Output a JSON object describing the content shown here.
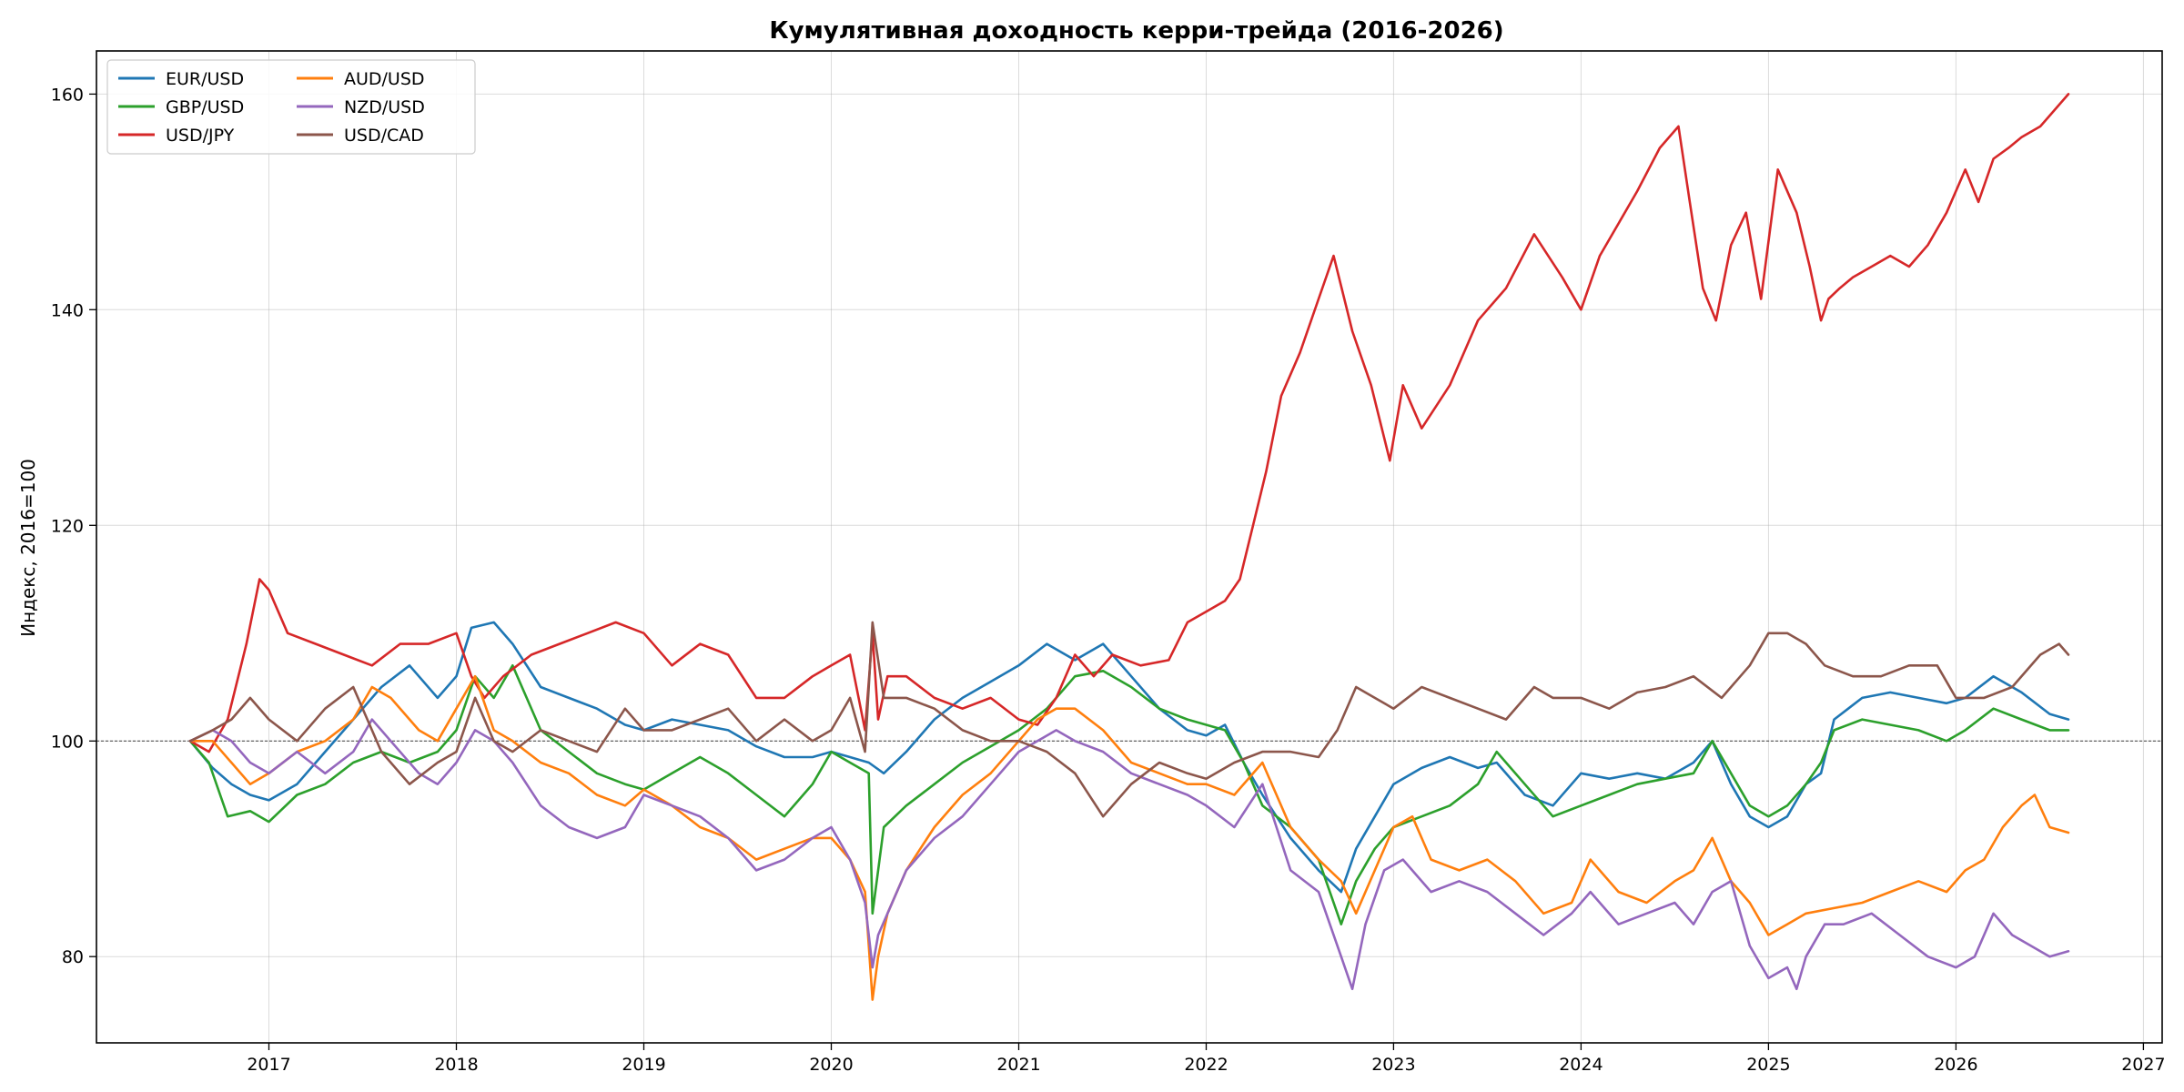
{
  "chart_data": {
    "type": "line",
    "title": "Кумулятивная доходность керри-трейда (2016-2026)",
    "xlabel": "",
    "ylabel": "Индекс, 2016=100",
    "xlim": [
      2016.08,
      2027.1
    ],
    "ylim": [
      72,
      164
    ],
    "x_ticks": [
      2017,
      2018,
      2019,
      2020,
      2021,
      2022,
      2023,
      2024,
      2025,
      2026,
      2027
    ],
    "y_ticks": [
      80,
      100,
      120,
      140,
      160
    ],
    "grid": true,
    "baseline": 100,
    "legend_position": "top-left",
    "legend_columns": 2,
    "series": [
      {
        "name": "EUR/USD",
        "color": "#1f77b4",
        "x": [
          2016.58,
          2016.7,
          2016.8,
          2016.9,
          2017.0,
          2017.15,
          2017.3,
          2017.45,
          2017.6,
          2017.75,
          2017.9,
          2018.0,
          2018.08,
          2018.2,
          2018.3,
          2018.45,
          2018.6,
          2018.75,
          2018.9,
          2019.0,
          2019.15,
          2019.3,
          2019.45,
          2019.6,
          2019.75,
          2019.9,
          2020.0,
          2020.1,
          2020.2,
          2020.28,
          2020.4,
          2020.55,
          2020.7,
          2020.85,
          2021.0,
          2021.15,
          2021.3,
          2021.45,
          2021.6,
          2021.75,
          2021.9,
          2022.0,
          2022.1,
          2022.2,
          2022.3,
          2022.45,
          2022.6,
          2022.72,
          2022.8,
          2022.9,
          2023.0,
          2023.15,
          2023.3,
          2023.45,
          2023.55,
          2023.7,
          2023.85,
          2024.0,
          2024.15,
          2024.3,
          2024.45,
          2024.6,
          2024.7,
          2024.8,
          2024.9,
          2025.0,
          2025.1,
          2025.2,
          2025.28,
          2025.35,
          2025.5,
          2025.65,
          2025.8,
          2025.95,
          2026.05,
          2026.2,
          2026.35,
          2026.5,
          2026.6
        ],
        "values": [
          100,
          97.5,
          96,
          95,
          94.5,
          96,
          99,
          102,
          105,
          107,
          104,
          106,
          110.5,
          111,
          109,
          105,
          104,
          103,
          101.5,
          101,
          102,
          101.5,
          101,
          99.5,
          98.5,
          98.5,
          99,
          98.5,
          98,
          97,
          99,
          102,
          104,
          105.5,
          107,
          109,
          107.5,
          109,
          106,
          103,
          101,
          100.5,
          101.5,
          98,
          95,
          91,
          88,
          86,
          90,
          93,
          96,
          97.5,
          98.5,
          97.5,
          98,
          95,
          94,
          97,
          96.5,
          97,
          96.5,
          98,
          100,
          96,
          93,
          92,
          93,
          96,
          97,
          102,
          104,
          104.5,
          104,
          103.5,
          104,
          106,
          104.5,
          102.5,
          102
        ]
      },
      {
        "name": "GBP/USD",
        "color": "#2ca02c",
        "x": [
          2016.58,
          2016.68,
          2016.78,
          2016.9,
          2017.0,
          2017.15,
          2017.3,
          2017.45,
          2017.6,
          2017.75,
          2017.9,
          2018.0,
          2018.1,
          2018.2,
          2018.3,
          2018.45,
          2018.6,
          2018.75,
          2018.9,
          2019.0,
          2019.15,
          2019.3,
          2019.45,
          2019.6,
          2019.75,
          2019.9,
          2020.0,
          2020.1,
          2020.2,
          2020.22,
          2020.28,
          2020.4,
          2020.55,
          2020.7,
          2020.85,
          2021.0,
          2021.15,
          2021.3,
          2021.45,
          2021.6,
          2021.75,
          2021.9,
          2022.0,
          2022.1,
          2022.2,
          2022.3,
          2022.45,
          2022.6,
          2022.72,
          2022.8,
          2022.9,
          2023.0,
          2023.15,
          2023.3,
          2023.45,
          2023.55,
          2023.7,
          2023.85,
          2024.0,
          2024.15,
          2024.3,
          2024.45,
          2024.6,
          2024.7,
          2024.8,
          2024.9,
          2025.0,
          2025.1,
          2025.2,
          2025.28,
          2025.35,
          2025.5,
          2025.65,
          2025.8,
          2025.95,
          2026.05,
          2026.2,
          2026.35,
          2026.5,
          2026.6
        ],
        "values": [
          100,
          98,
          93,
          93.5,
          92.5,
          95,
          96,
          98,
          99,
          98,
          99,
          101,
          106,
          104,
          107,
          101,
          99,
          97,
          96,
          95.5,
          97,
          98.5,
          97,
          95,
          93,
          96,
          99,
          98,
          97,
          84,
          92,
          94,
          96,
          98,
          99.5,
          101,
          103,
          106,
          106.5,
          105,
          103,
          102,
          101.5,
          101,
          98,
          94,
          92,
          89,
          83,
          87,
          90,
          92,
          93,
          94,
          96,
          99,
          96,
          93,
          94,
          95,
          96,
          96.5,
          97,
          100,
          97,
          94,
          93,
          94,
          96,
          98,
          101,
          102,
          101.5,
          101,
          100,
          101,
          103,
          102,
          101,
          101
        ]
      },
      {
        "name": "USD/JPY",
        "color": "#d62728",
        "x": [
          2016.58,
          2016.68,
          2016.78,
          2016.88,
          2016.95,
          2017.0,
          2017.1,
          2017.25,
          2017.4,
          2017.55,
          2017.7,
          2017.85,
          2018.0,
          2018.08,
          2018.15,
          2018.25,
          2018.4,
          2018.55,
          2018.7,
          2018.85,
          2019.0,
          2019.15,
          2019.3,
          2019.45,
          2019.6,
          2019.75,
          2019.9,
          2020.0,
          2020.1,
          2020.18,
          2020.22,
          2020.25,
          2020.3,
          2020.4,
          2020.55,
          2020.7,
          2020.85,
          2021.0,
          2021.1,
          2021.2,
          2021.3,
          2021.4,
          2021.5,
          2021.65,
          2021.8,
          2021.9,
          2022.0,
          2022.1,
          2022.18,
          2022.25,
          2022.32,
          2022.4,
          2022.5,
          2022.6,
          2022.68,
          2022.78,
          2022.88,
          2022.98,
          2023.05,
          2023.15,
          2023.3,
          2023.45,
          2023.6,
          2023.75,
          2023.9,
          2024.0,
          2024.1,
          2024.2,
          2024.3,
          2024.42,
          2024.52,
          2024.58,
          2024.65,
          2024.72,
          2024.8,
          2024.88,
          2024.96,
          2025.05,
          2025.15,
          2025.22,
          2025.28,
          2025.32,
          2025.38,
          2025.45,
          2025.55,
          2025.65,
          2025.75,
          2025.85,
          2025.95,
          2026.05,
          2026.12,
          2026.2,
          2026.28,
          2026.35,
          2026.45,
          2026.6
        ],
        "values": [
          100,
          99,
          102,
          109,
          115,
          114,
          110,
          109,
          108,
          107,
          109,
          109,
          110,
          106,
          104,
          106,
          108,
          109,
          110,
          111,
          110,
          107,
          109,
          108,
          104,
          104,
          106,
          107,
          108,
          101,
          110,
          102,
          106,
          106,
          104,
          103,
          104,
          102,
          101.5,
          104,
          108,
          106,
          108,
          107,
          107.5,
          111,
          112,
          113,
          115,
          120,
          125,
          132,
          136,
          141,
          145,
          138,
          133,
          126,
          133,
          129,
          133,
          139,
          142,
          147,
          143,
          140,
          145,
          148,
          151,
          155,
          157,
          150,
          142,
          139,
          146,
          149,
          141,
          153,
          149,
          144,
          139,
          141,
          142,
          143,
          144,
          145,
          144,
          146,
          149,
          153,
          150,
          154,
          155,
          156,
          157,
          160
        ]
      },
      {
        "name": "AUD/USD",
        "color": "#ff7f0e",
        "x": [
          2016.58,
          2016.7,
          2016.8,
          2016.9,
          2017.0,
          2017.15,
          2017.3,
          2017.45,
          2017.55,
          2017.65,
          2017.8,
          2017.9,
          2018.0,
          2018.1,
          2018.2,
          2018.3,
          2018.45,
          2018.6,
          2018.75,
          2018.9,
          2019.0,
          2019.15,
          2019.3,
          2019.45,
          2019.6,
          2019.75,
          2019.9,
          2020.0,
          2020.1,
          2020.18,
          2020.22,
          2020.25,
          2020.3,
          2020.4,
          2020.55,
          2020.7,
          2020.85,
          2021.0,
          2021.1,
          2021.2,
          2021.3,
          2021.45,
          2021.6,
          2021.75,
          2021.9,
          2022.0,
          2022.15,
          2022.3,
          2022.45,
          2022.6,
          2022.72,
          2022.8,
          2022.9,
          2023.0,
          2023.1,
          2023.2,
          2023.35,
          2023.5,
          2023.65,
          2023.8,
          2023.95,
          2024.05,
          2024.2,
          2024.35,
          2024.5,
          2024.6,
          2024.7,
          2024.8,
          2024.9,
          2025.0,
          2025.1,
          2025.2,
          2025.35,
          2025.5,
          2025.65,
          2025.8,
          2025.95,
          2026.05,
          2026.15,
          2026.25,
          2026.35,
          2026.42,
          2026.5,
          2026.6
        ],
        "values": [
          100,
          100,
          98,
          96,
          97,
          99,
          100,
          102,
          105,
          104,
          101,
          100,
          103,
          106,
          101,
          100,
          98,
          97,
          95,
          94,
          95.5,
          94,
          92,
          91,
          89,
          90,
          91,
          91,
          89,
          86,
          76,
          80,
          84,
          88,
          92,
          95,
          97,
          100,
          102,
          103,
          103,
          101,
          98,
          97,
          96,
          96,
          95,
          98,
          92,
          89,
          87,
          84,
          88,
          92,
          93,
          89,
          88,
          89,
          87,
          84,
          85,
          89,
          86,
          85,
          87,
          88,
          91,
          87,
          85,
          82,
          83,
          84,
          84.5,
          85,
          86,
          87,
          86,
          88,
          89,
          92,
          94,
          95,
          92,
          91.5
        ]
      },
      {
        "name": "NZD/USD",
        "color": "#9467bd",
        "x": [
          2016.58,
          2016.7,
          2016.8,
          2016.9,
          2017.0,
          2017.15,
          2017.3,
          2017.45,
          2017.55,
          2017.65,
          2017.8,
          2017.9,
          2018.0,
          2018.1,
          2018.2,
          2018.3,
          2018.45,
          2018.6,
          2018.75,
          2018.9,
          2019.0,
          2019.15,
          2019.3,
          2019.45,
          2019.6,
          2019.75,
          2019.9,
          2020.0,
          2020.1,
          2020.18,
          2020.22,
          2020.25,
          2020.3,
          2020.4,
          2020.55,
          2020.7,
          2020.85,
          2021.0,
          2021.1,
          2021.2,
          2021.3,
          2021.45,
          2021.6,
          2021.75,
          2021.9,
          2022.0,
          2022.15,
          2022.3,
          2022.45,
          2022.6,
          2022.72,
          2022.78,
          2022.85,
          2022.95,
          2023.05,
          2023.2,
          2023.35,
          2023.5,
          2023.65,
          2023.8,
          2023.95,
          2024.05,
          2024.2,
          2024.35,
          2024.5,
          2024.6,
          2024.7,
          2024.8,
          2024.9,
          2025.0,
          2025.1,
          2025.15,
          2025.2,
          2025.3,
          2025.4,
          2025.55,
          2025.7,
          2025.85,
          2026.0,
          2026.1,
          2026.2,
          2026.3,
          2026.4,
          2026.5,
          2026.6
        ],
        "values": [
          100,
          101,
          100,
          98,
          97,
          99,
          97,
          99,
          102,
          100,
          97,
          96,
          98,
          101,
          100,
          98,
          94,
          92,
          91,
          92,
          95,
          94,
          93,
          91,
          88,
          89,
          91,
          92,
          89,
          85,
          79,
          82,
          84,
          88,
          91,
          93,
          96,
          99,
          100,
          101,
          100,
          99,
          97,
          96,
          95,
          94,
          92,
          96,
          88,
          86,
          80,
          77,
          83,
          88,
          89,
          86,
          87,
          86,
          84,
          82,
          84,
          86,
          83,
          84,
          85,
          83,
          86,
          87,
          81,
          78,
          79,
          77,
          80,
          83,
          83,
          84,
          82,
          80,
          79,
          80,
          84,
          82,
          81,
          80,
          80.5
        ]
      },
      {
        "name": "USD/CAD",
        "color": "#8c564b",
        "x": [
          2016.58,
          2016.7,
          2016.8,
          2016.9,
          2017.0,
          2017.15,
          2017.3,
          2017.45,
          2017.6,
          2017.75,
          2017.9,
          2018.0,
          2018.1,
          2018.2,
          2018.3,
          2018.45,
          2018.6,
          2018.75,
          2018.9,
          2019.0,
          2019.15,
          2019.3,
          2019.45,
          2019.6,
          2019.75,
          2019.9,
          2020.0,
          2020.1,
          2020.18,
          2020.22,
          2020.28,
          2020.4,
          2020.55,
          2020.7,
          2020.85,
          2021.0,
          2021.15,
          2021.3,
          2021.45,
          2021.6,
          2021.75,
          2021.9,
          2022.0,
          2022.15,
          2022.3,
          2022.45,
          2022.6,
          2022.7,
          2022.8,
          2022.9,
          2023.0,
          2023.15,
          2023.3,
          2023.45,
          2023.6,
          2023.75,
          2023.85,
          2024.0,
          2024.15,
          2024.3,
          2024.45,
          2024.6,
          2024.75,
          2024.9,
          2025.0,
          2025.1,
          2025.2,
          2025.3,
          2025.45,
          2025.6,
          2025.75,
          2025.9,
          2026.0,
          2026.15,
          2026.3,
          2026.45,
          2026.55,
          2026.6
        ],
        "values": [
          100,
          101,
          102,
          104,
          102,
          100,
          103,
          105,
          99,
          96,
          98,
          99,
          104,
          100,
          99,
          101,
          100,
          99,
          103,
          101,
          101,
          102,
          103,
          100,
          102,
          100,
          101,
          104,
          99,
          111,
          104,
          104,
          103,
          101,
          100,
          100,
          99,
          97,
          93,
          96,
          98,
          97,
          96.5,
          98,
          99,
          99,
          98.5,
          101,
          105,
          104,
          103,
          105,
          104,
          103,
          102,
          105,
          104,
          104,
          103,
          104.5,
          105,
          106,
          104,
          107,
          110,
          110,
          109,
          107,
          106,
          106,
          107,
          107,
          104,
          104,
          105,
          108,
          109,
          108
        ]
      }
    ]
  }
}
